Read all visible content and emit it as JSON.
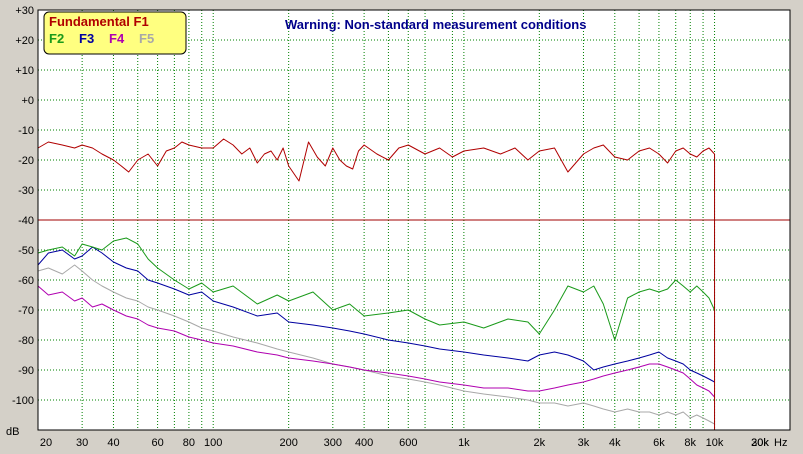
{
  "colors": {
    "background": "#d4d0c8",
    "plot_bg": "#ffffff",
    "grid": "#008000",
    "threshold": "#a00000",
    "warning": "#00008b",
    "legend_bg": "#ffff80"
  },
  "chart_data": {
    "type": "line",
    "title": "",
    "warning": "Warning: Non-standard measurement conditions",
    "xlabel": "Hz",
    "ylabel": "dB",
    "x_scale": "log",
    "xlim": [
      20,
      20000
    ],
    "ylim": [
      -110,
      30
    ],
    "grid": true,
    "legend_position": "top-left",
    "x_ticks": [
      {
        "v": 20,
        "label": "20"
      },
      {
        "v": 30,
        "label": "30"
      },
      {
        "v": 40,
        "label": "40"
      },
      {
        "v": 60,
        "label": "60"
      },
      {
        "v": 80,
        "label": "80"
      },
      {
        "v": 100,
        "label": "100"
      },
      {
        "v": 200,
        "label": "200"
      },
      {
        "v": 300,
        "label": "300"
      },
      {
        "v": 400,
        "label": "400"
      },
      {
        "v": 600,
        "label": "600"
      },
      {
        "v": 1000,
        "label": "1k"
      },
      {
        "v": 2000,
        "label": "2k"
      },
      {
        "v": 3000,
        "label": "3k"
      },
      {
        "v": 4000,
        "label": "4k"
      },
      {
        "v": 6000,
        "label": "6k"
      },
      {
        "v": 8000,
        "label": "8k"
      },
      {
        "v": 10000,
        "label": "10k"
      },
      {
        "v": 20000,
        "label": "20k"
      },
      {
        "v": 30000,
        "label": "30k"
      }
    ],
    "x_minor_grid": [
      50,
      70,
      90,
      500,
      700,
      900,
      5000,
      7000,
      9000
    ],
    "y_ticks": [
      {
        "v": 30,
        "label": "+30"
      },
      {
        "v": 20,
        "label": "+20"
      },
      {
        "v": 10,
        "label": "+10"
      },
      {
        "v": 0,
        "label": "+0"
      },
      {
        "v": -10,
        "label": "-10"
      },
      {
        "v": -20,
        "label": "-20"
      },
      {
        "v": -30,
        "label": "-30"
      },
      {
        "v": -40,
        "label": "-40"
      },
      {
        "v": -50,
        "label": "-50"
      },
      {
        "v": -60,
        "label": "-60"
      },
      {
        "v": -70,
        "label": "-70"
      },
      {
        "v": -80,
        "label": "-80"
      },
      {
        "v": -90,
        "label": "-90"
      },
      {
        "v": -100,
        "label": "-100"
      }
    ],
    "threshold": -40,
    "cutoff_hz": 10000,
    "series": [
      {
        "name": "Fundamental F1",
        "color": "#b00000",
        "x": [
          20,
          22,
          25,
          28,
          30,
          33,
          36,
          40,
          43,
          46,
          50,
          55,
          60,
          65,
          70,
          75,
          80,
          90,
          100,
          110,
          120,
          130,
          140,
          150,
          160,
          170,
          180,
          190,
          200,
          220,
          240,
          260,
          280,
          300,
          320,
          340,
          360,
          380,
          400,
          450,
          500,
          550,
          600,
          700,
          800,
          900,
          1000,
          1200,
          1400,
          1600,
          1800,
          2000,
          2300,
          2600,
          3000,
          3300,
          3600,
          4000,
          4500,
          5000,
          5500,
          6000,
          6500,
          7000,
          7500,
          8000,
          8500,
          9000,
          9500,
          10000
        ],
        "y": [
          -16,
          -14,
          -15,
          -16,
          -15,
          -16,
          -18,
          -20,
          -22,
          -24,
          -20,
          -18,
          -22,
          -17,
          -16,
          -14,
          -15,
          -16,
          -16,
          -13,
          -15,
          -18,
          -16,
          -21,
          -18,
          -17,
          -20,
          -16,
          -22,
          -27,
          -14,
          -19,
          -22,
          -16,
          -20,
          -22,
          -23,
          -17,
          -15,
          -18,
          -20,
          -16,
          -15,
          -18,
          -16,
          -19,
          -17,
          -16,
          -18,
          -16,
          -20,
          -17,
          -16,
          -24,
          -18,
          -16,
          -15,
          -19,
          -20,
          -17,
          -16,
          -18,
          -21,
          -17,
          -16,
          -18,
          -19,
          -17,
          -16,
          -18
        ]
      },
      {
        "name": "F2",
        "color": "#1a9a1a",
        "x": [
          20,
          22,
          25,
          28,
          30,
          33,
          36,
          40,
          45,
          50,
          55,
          60,
          70,
          80,
          90,
          100,
          120,
          150,
          180,
          200,
          250,
          300,
          350,
          400,
          500,
          600,
          700,
          800,
          1000,
          1200,
          1500,
          1800,
          2000,
          2300,
          2600,
          3000,
          3300,
          3600,
          4000,
          4500,
          5000,
          5500,
          6000,
          6500,
          7000,
          7500,
          8000,
          8500,
          9000,
          9500,
          10000
        ],
        "y": [
          -51,
          -50,
          -49,
          -52,
          -48,
          -49,
          -50,
          -47,
          -46,
          -48,
          -53,
          -56,
          -60,
          -63,
          -61,
          -64,
          -62,
          -68,
          -65,
          -67,
          -64,
          -70,
          -68,
          -72,
          -71,
          -70,
          -73,
          -75,
          -74,
          -76,
          -73,
          -74,
          -78,
          -70,
          -62,
          -64,
          -62,
          -68,
          -80,
          -66,
          -64,
          -63,
          -64,
          -63,
          -60,
          -62,
          -64,
          -62,
          -64,
          -66,
          -70
        ]
      },
      {
        "name": "F3",
        "color": "#0000a0",
        "x": [
          20,
          22,
          25,
          28,
          30,
          33,
          36,
          40,
          45,
          50,
          55,
          60,
          70,
          80,
          90,
          100,
          120,
          150,
          180,
          200,
          250,
          300,
          350,
          400,
          500,
          600,
          700,
          800,
          1000,
          1200,
          1500,
          1800,
          2000,
          2300,
          2600,
          3000,
          3300,
          3600,
          4000,
          4500,
          5000,
          5500,
          6000,
          6500,
          7000,
          7500,
          8000,
          8500,
          9000,
          9500,
          10000
        ],
        "y": [
          -55,
          -51,
          -50,
          -53,
          -52,
          -49,
          -51,
          -54,
          -56,
          -57,
          -60,
          -61,
          -63,
          -65,
          -64,
          -67,
          -69,
          -72,
          -71,
          -74,
          -75,
          -76,
          -77,
          -78,
          -80,
          -81,
          -82,
          -83,
          -84,
          -85,
          -86,
          -87,
          -85,
          -84,
          -85,
          -87,
          -90,
          -89,
          -88,
          -87,
          -86,
          -85,
          -84,
          -86,
          -87,
          -88,
          -90,
          -91,
          -92,
          -93,
          -94
        ]
      },
      {
        "name": "F4",
        "color": "#b000b0",
        "x": [
          20,
          22,
          25,
          28,
          30,
          33,
          36,
          40,
          45,
          50,
          55,
          60,
          70,
          80,
          90,
          100,
          120,
          150,
          180,
          200,
          250,
          300,
          350,
          400,
          500,
          600,
          700,
          800,
          1000,
          1200,
          1500,
          1800,
          2000,
          2300,
          2600,
          3000,
          3300,
          3600,
          4000,
          4500,
          5000,
          5500,
          6000,
          6500,
          7000,
          7500,
          8000,
          8500,
          9000,
          9500,
          10000
        ],
        "y": [
          -62,
          -65,
          -64,
          -67,
          -66,
          -69,
          -68,
          -70,
          -72,
          -73,
          -75,
          -76,
          -77,
          -79,
          -80,
          -81,
          -82,
          -84,
          -85,
          -86,
          -87,
          -88,
          -89,
          -90,
          -91,
          -92,
          -93,
          -94,
          -95,
          -96,
          -96,
          -97,
          -97,
          -96,
          -95,
          -94,
          -93,
          -92,
          -91,
          -90,
          -89,
          -88,
          -88,
          -89,
          -90,
          -91,
          -93,
          -95,
          -96,
          -97,
          -99
        ]
      },
      {
        "name": "F5",
        "color": "#a8a8a8",
        "x": [
          20,
          22,
          25,
          28,
          30,
          33,
          36,
          40,
          45,
          50,
          55,
          60,
          70,
          80,
          90,
          100,
          120,
          150,
          180,
          200,
          250,
          300,
          350,
          400,
          500,
          600,
          700,
          800,
          1000,
          1200,
          1500,
          1800,
          2000,
          2300,
          2600,
          3000,
          3300,
          3600,
          4000,
          4500,
          5000,
          5500,
          6000,
          6500,
          7000,
          7500,
          8000,
          8500,
          9000,
          9500,
          10000
        ],
        "y": [
          -57,
          -56,
          -58,
          -55,
          -57,
          -60,
          -62,
          -64,
          -66,
          -67,
          -69,
          -70,
          -72,
          -74,
          -76,
          -77,
          -79,
          -81,
          -83,
          -84,
          -86,
          -88,
          -89,
          -90,
          -92,
          -93,
          -94,
          -95,
          -97,
          -98,
          -99,
          -100,
          -101,
          -101,
          -102,
          -101,
          -102,
          -103,
          -104,
          -103,
          -104,
          -104,
          -105,
          -104,
          -105,
          -104,
          -106,
          -105,
          -106,
          -107,
          -108
        ]
      }
    ]
  }
}
